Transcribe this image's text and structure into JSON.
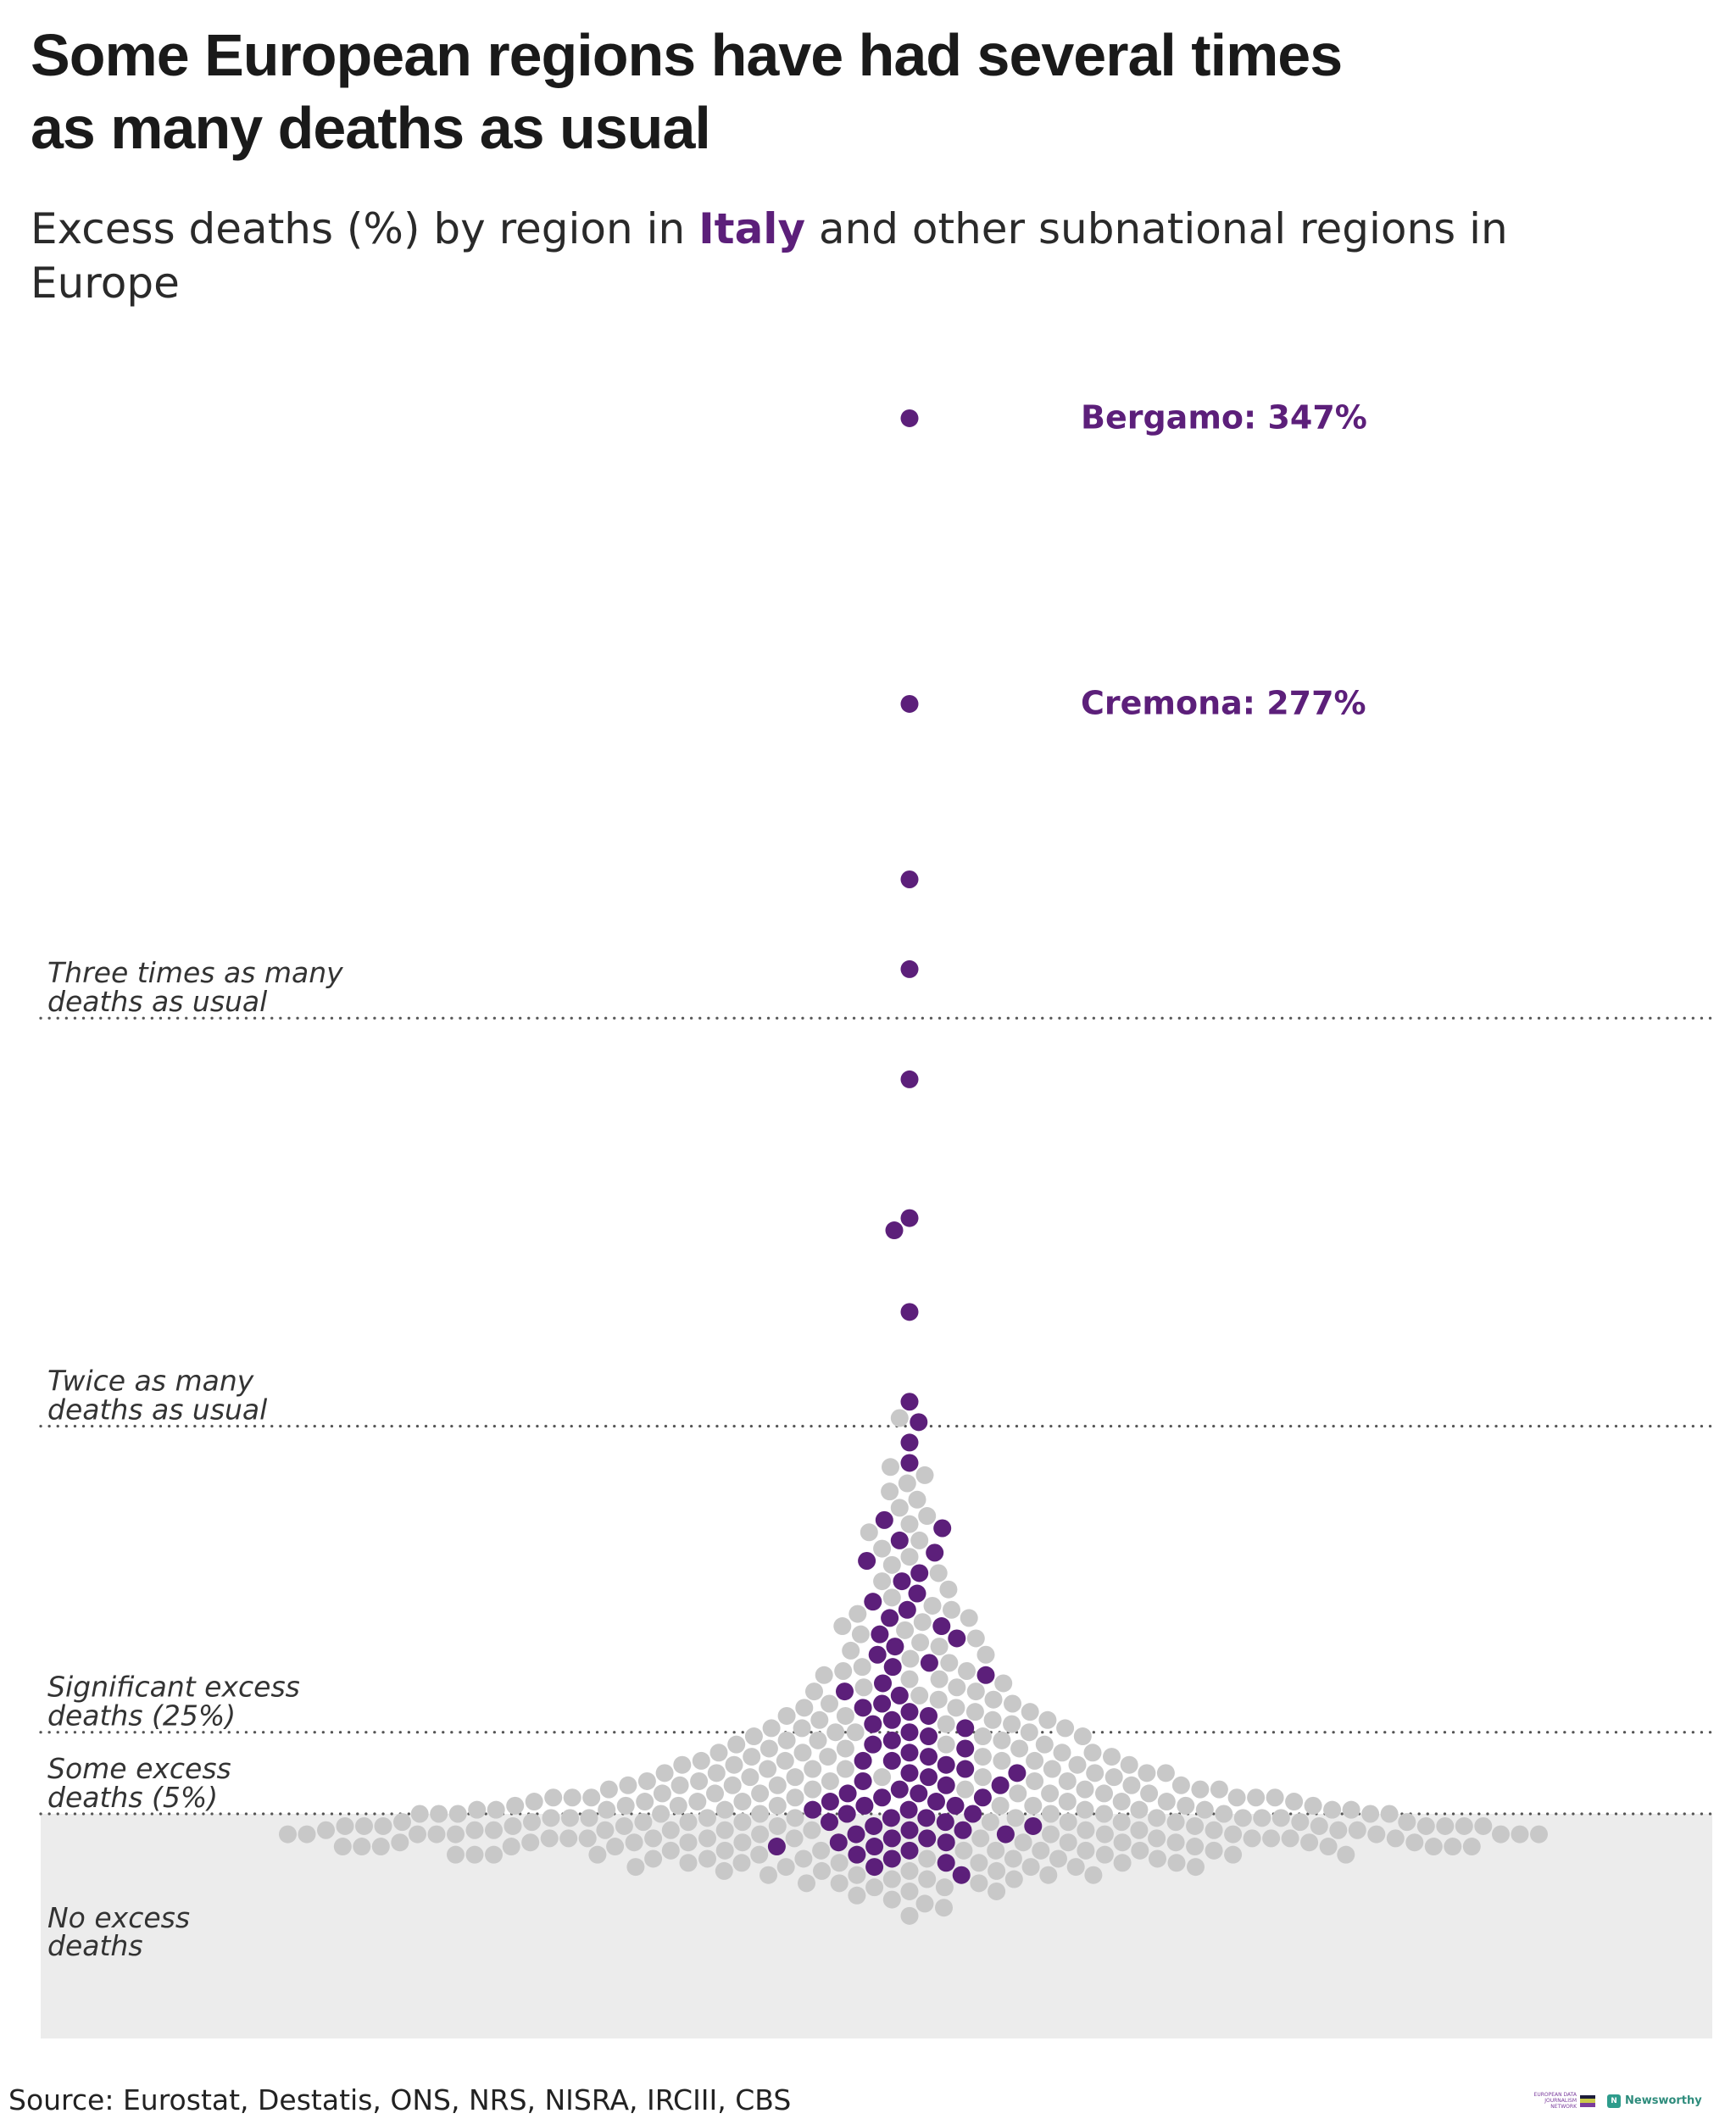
{
  "header": {
    "title_line1": "Some European regions have had several times",
    "title_line2": "as many deaths as usual",
    "subtitle_before": "Excess deaths (%) by region in ",
    "subtitle_highlight": "Italy",
    "subtitle_after": " and other subnational regions in Europe"
  },
  "colors": {
    "italy": "#5c1f7a",
    "other": "#c8c8c8",
    "no_excess_band": "#ececec",
    "reference_line": "#555555"
  },
  "footer": {
    "source": "Source: Eurostat, Destatis, ONS, NRS, NISRA, IRCIII, CBS",
    "logo_edjnet": "EUROPEAN DATA JOURNALISM NETWORK",
    "logo_newsworthy": "Newsworthy",
    "logo_newsworthy_mark": "N"
  },
  "chart_data": {
    "type": "scatter",
    "subtype": "beeswarm",
    "title": "Some European regions have had several times as many deaths as usual",
    "ylabel": "Excess deaths (%)",
    "ylim": [
      -30,
      360
    ],
    "grid": false,
    "legend": "none",
    "reference_lines": [
      {
        "value": 200,
        "label_line1": "Three times as many",
        "label_line2": "deaths as usual"
      },
      {
        "value": 100,
        "label_line1": "Twice as many",
        "label_line2": "deaths as usual"
      },
      {
        "value": 25,
        "label_line1": "Significant excess",
        "label_line2": "deaths (25%)"
      },
      {
        "value": 5,
        "label_line1": "Some excess",
        "label_line2": "deaths (5%)"
      }
    ],
    "no_excess_band": {
      "from": 5,
      "label_line1": "No excess",
      "label_line2": "deaths"
    },
    "annotations": [
      {
        "region": "Bergamo",
        "value": 347,
        "text": "Bergamo: 347%"
      },
      {
        "region": "Cremona",
        "value": 277,
        "text": "Cremona: 277%"
      }
    ],
    "series": [
      {
        "name": "Italy",
        "values": [
          347,
          277,
          234,
          212,
          185,
          151,
          148,
          128,
          106,
          101,
          96,
          91,
          77,
          75,
          72,
          69,
          67,
          64,
          62,
          59,
          57,
          55,
          53,
          51,
          49,
          48,
          46,
          44,
          42,
          41,
          39,
          37,
          35,
          34,
          32,
          31,
          30,
          29,
          28,
          27,
          26,
          25,
          24,
          23,
          22,
          21,
          20,
          19,
          18,
          18,
          17,
          16,
          15,
          15,
          14,
          13,
          12,
          12,
          11,
          10,
          10,
          9,
          9,
          8,
          8,
          7,
          7,
          6,
          6,
          5,
          5,
          4,
          4,
          3,
          3,
          2,
          2,
          1,
          1,
          0,
          0,
          -1,
          -1,
          -2,
          -2,
          -3,
          -3,
          -4,
          -5,
          -6,
          -7,
          -8,
          -10
        ]
      },
      {
        "name": "Other European regions",
        "values": [
          102,
          90,
          88,
          86,
          84,
          82,
          80,
          78,
          76,
          74,
          72,
          70,
          68,
          66,
          64,
          62,
          60,
          58,
          56,
          55,
          54,
          53,
          52,
          51,
          50,
          49,
          48,
          47,
          46,
          45,
          44,
          43,
          42,
          41,
          40,
          40,
          39,
          38,
          38,
          37,
          36,
          36,
          35,
          35,
          34,
          33,
          33,
          32,
          32,
          31,
          31,
          30,
          30,
          29,
          29,
          28,
          28,
          28,
          27,
          27,
          26,
          26,
          26,
          25,
          25,
          25,
          24,
          24,
          24,
          23,
          23,
          23,
          22,
          22,
          22,
          21,
          21,
          21,
          20,
          20,
          20,
          20,
          19,
          19,
          19,
          19,
          18,
          18,
          18,
          18,
          17,
          17,
          17,
          17,
          16,
          16,
          16,
          16,
          15,
          15,
          15,
          15,
          15,
          14,
          14,
          14,
          14,
          14,
          13,
          13,
          13,
          13,
          13,
          12,
          12,
          12,
          12,
          12,
          12,
          11,
          11,
          11,
          11,
          11,
          11,
          10,
          10,
          10,
          10,
          10,
          10,
          10,
          9,
          9,
          9,
          9,
          9,
          9,
          9,
          8,
          8,
          8,
          8,
          8,
          8,
          8,
          8,
          7,
          7,
          7,
          7,
          7,
          7,
          7,
          7,
          6,
          6,
          6,
          6,
          6,
          6,
          6,
          6,
          6,
          5,
          5,
          5,
          5,
          5,
          5,
          5,
          5,
          5,
          5,
          4,
          4,
          4,
          4,
          4,
          4,
          4,
          4,
          4,
          4,
          3,
          3,
          3,
          3,
          3,
          3,
          3,
          3,
          3,
          3,
          3,
          2,
          2,
          2,
          2,
          2,
          2,
          2,
          2,
          2,
          2,
          2,
          2,
          1,
          1,
          1,
          1,
          1,
          1,
          1,
          1,
          1,
          1,
          1,
          1,
          0,
          0,
          0,
          0,
          0,
          0,
          0,
          0,
          0,
          0,
          0,
          0,
          0,
          -1,
          -1,
          -1,
          -1,
          -1,
          -1,
          -1,
          -1,
          -1,
          -1,
          -1,
          -1,
          -2,
          -2,
          -2,
          -2,
          -2,
          -2,
          -2,
          -2,
          -2,
          -2,
          -2,
          -3,
          -3,
          -3,
          -3,
          -3,
          -3,
          -3,
          -3,
          -3,
          -3,
          -4,
          -4,
          -4,
          -4,
          -4,
          -4,
          -4,
          -4,
          -4,
          -5,
          -5,
          -5,
          -5,
          -5,
          -5,
          -5,
          -5,
          -6,
          -6,
          -6,
          -6,
          -6,
          -6,
          -6,
          -7,
          -7,
          -7,
          -7,
          -7,
          -7,
          -8,
          -8,
          -8,
          -8,
          -8,
          -9,
          -9,
          -9,
          -9,
          -10,
          -10,
          -10,
          -10,
          -11,
          -11,
          -11,
          -12,
          -12,
          -12,
          -13,
          -13,
          -14,
          -14,
          -15,
          -16,
          -17,
          -18,
          -20
        ]
      }
    ]
  }
}
